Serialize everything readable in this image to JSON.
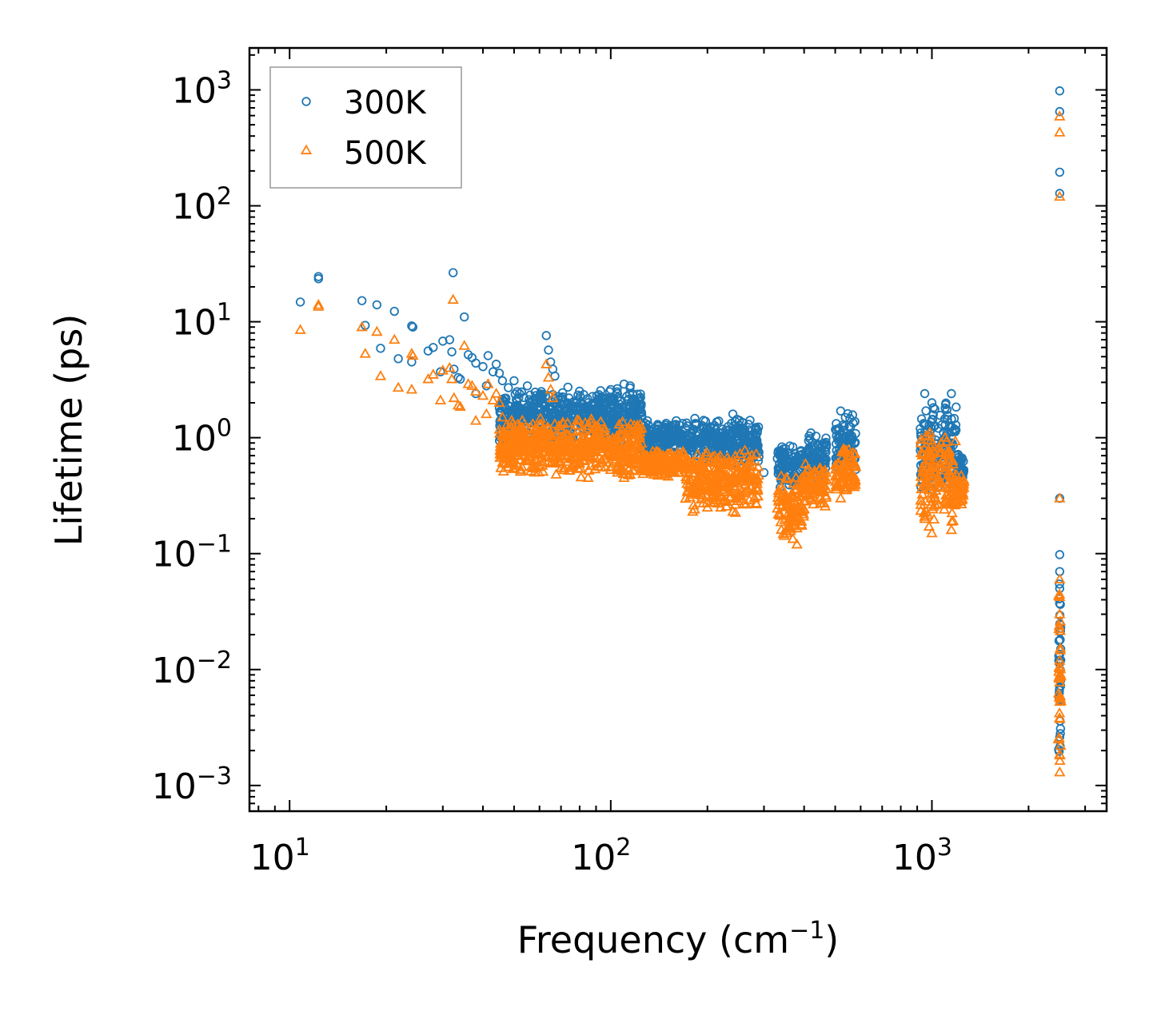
{
  "chart_data": {
    "type": "scatter",
    "title": "",
    "xlabel": "Frequency (cm",
    "xlabel_sup": "−1",
    "xlabel_end": ")",
    "ylabel": "Lifetime (ps)",
    "xscale": "log",
    "yscale": "log",
    "xlim": [
      7.5,
      3500
    ],
    "ylim": [
      0.0006,
      2300
    ],
    "x_ticks": [
      {
        "base": "10",
        "exp": "1",
        "value": 10
      },
      {
        "base": "10",
        "exp": "2",
        "value": 100
      },
      {
        "base": "10",
        "exp": "3",
        "value": 1000
      }
    ],
    "y_ticks": [
      {
        "base": "10",
        "exp": "3",
        "value": 1000
      },
      {
        "base": "10",
        "exp": "2",
        "value": 100
      },
      {
        "base": "10",
        "exp": "1",
        "value": 10
      },
      {
        "base": "10",
        "exp": "0",
        "value": 1
      },
      {
        "base": "10",
        "exp": "−1",
        "value": 0.1
      },
      {
        "base": "10",
        "exp": "−2",
        "value": 0.01
      },
      {
        "base": "10",
        "exp": "−3",
        "value": 0.001
      }
    ],
    "legend_position": "top-left",
    "series": [
      {
        "name": "300K",
        "marker": "circle",
        "color": "#1f77b4",
        "points": [
          [
            10.8,
            14.8
          ],
          [
            12.3,
            23.5
          ],
          [
            12.3,
            24.5
          ],
          [
            16.8,
            15.2
          ],
          [
            17.2,
            9.3
          ],
          [
            18.7,
            14
          ],
          [
            19.2,
            5.9
          ],
          [
            21.2,
            12.3
          ],
          [
            21.8,
            4.8
          ],
          [
            24,
            9.2
          ],
          [
            24.2,
            9
          ],
          [
            24,
            4.5
          ],
          [
            27,
            5.6
          ],
          [
            28,
            6
          ],
          [
            29.5,
            3.7
          ],
          [
            30,
            6.8
          ],
          [
            31.5,
            7
          ],
          [
            32,
            5.5
          ],
          [
            32.3,
            26.5
          ],
          [
            32.5,
            3.9
          ],
          [
            33.5,
            3.3
          ],
          [
            34,
            3.2
          ],
          [
            35,
            11
          ],
          [
            36,
            5.2
          ],
          [
            37,
            4.9
          ],
          [
            38,
            4.4
          ],
          [
            38,
            2.4
          ],
          [
            40,
            4.1
          ],
          [
            41,
            2.8
          ],
          [
            41.5,
            5.1
          ],
          [
            43,
            3.7
          ],
          [
            44,
            4.3
          ],
          [
            45,
            3.6
          ],
          [
            45,
            1.8
          ],
          [
            46,
            3.1
          ],
          [
            48,
            2.7
          ],
          [
            50,
            3.1
          ],
          [
            52,
            2.4
          ],
          [
            55,
            2.8
          ],
          [
            57,
            2.1
          ],
          [
            60,
            2.3
          ],
          [
            62,
            1.9
          ],
          [
            63,
            7.6
          ],
          [
            64,
            5.7
          ],
          [
            65,
            4.5
          ],
          [
            66,
            3.9
          ],
          [
            67,
            3.4
          ],
          [
            70,
            2.2
          ],
          [
            75,
            1.9
          ],
          [
            80,
            1.7
          ],
          [
            85,
            2.0
          ],
          [
            90,
            1.6
          ],
          [
            95,
            2.2
          ],
          [
            100,
            2.6
          ],
          [
            105,
            2.4
          ],
          [
            110,
            2.9
          ],
          [
            115,
            2.8
          ],
          [
            120,
            1.9
          ],
          [
            125,
            1.5
          ],
          [
            130,
            1.4
          ],
          [
            140,
            1.3
          ],
          [
            150,
            1.1
          ],
          [
            160,
            1.4
          ],
          [
            180,
            1.0
          ],
          [
            200,
            1.2
          ],
          [
            220,
            1.1
          ],
          [
            240,
            1.6
          ],
          [
            260,
            1.0
          ],
          [
            280,
            0.9
          ],
          [
            300,
            0.5
          ],
          [
            350,
            0.8
          ],
          [
            380,
            0.6
          ],
          [
            420,
            1.1
          ],
          [
            460,
            0.9
          ],
          [
            520,
            1.7
          ],
          [
            560,
            1.0
          ],
          [
            950,
            2.4
          ],
          [
            1000,
            2.0
          ],
          [
            1100,
            1.8
          ],
          [
            1150,
            2.4
          ],
          [
            1200,
            0.7
          ],
          [
            2500,
            980
          ],
          [
            2500,
            650
          ],
          [
            2500,
            195
          ],
          [
            2500,
            128
          ],
          [
            2500,
            0.3
          ],
          [
            2500,
            0.098
          ],
          [
            2500,
            0.07
          ],
          [
            2500,
            0.05
          ]
        ],
        "bands": [
          {
            "x_range": [
              45,
              125
            ],
            "y_range": [
              0.9,
              2.8
            ]
          },
          {
            "x_range": [
              125,
              170
            ],
            "y_range": [
              0.7,
              1.4
            ]
          },
          {
            "x_range": [
              170,
              290
            ],
            "y_range": [
              0.55,
              1.5
            ]
          },
          {
            "x_range": [
              330,
              400
            ],
            "y_range": [
              0.35,
              0.9
            ]
          },
          {
            "x_range": [
              400,
              470
            ],
            "y_range": [
              0.4,
              1.1
            ]
          },
          {
            "x_range": [
              500,
              580
            ],
            "y_range": [
              0.5,
              1.7
            ]
          },
          {
            "x_range": [
              920,
              1190
            ],
            "y_range": [
              0.3,
              2.4
            ]
          },
          {
            "x_range": [
              1190,
              1260
            ],
            "y_range": [
              0.4,
              0.75
            ]
          },
          {
            "x_range": [
              2480,
              2520
            ],
            "y_range": [
              0.0013,
              0.1
            ]
          }
        ]
      },
      {
        "name": "500K",
        "marker": "triangle",
        "color": "#ff7f0e",
        "points": [
          [
            10.8,
            8.5
          ],
          [
            12.3,
            13.5
          ],
          [
            12.3,
            14
          ],
          [
            16.8,
            9
          ],
          [
            17.2,
            5.3
          ],
          [
            18.7,
            8.2
          ],
          [
            19.2,
            3.4
          ],
          [
            21.2,
            7
          ],
          [
            21.8,
            2.7
          ],
          [
            24,
            5.3
          ],
          [
            24.2,
            5.1
          ],
          [
            24,
            2.6
          ],
          [
            27,
            3.2
          ],
          [
            28,
            3.5
          ],
          [
            29.5,
            2.1
          ],
          [
            30,
            3.8
          ],
          [
            31.5,
            4.0
          ],
          [
            32,
            3.2
          ],
          [
            32.3,
            15.5
          ],
          [
            32.5,
            2.2
          ],
          [
            33.5,
            1.9
          ],
          [
            34,
            1.85
          ],
          [
            35,
            6.2
          ],
          [
            36,
            2.9
          ],
          [
            37,
            2.8
          ],
          [
            38,
            2.5
          ],
          [
            38,
            1.4
          ],
          [
            40,
            2.3
          ],
          [
            41,
            1.6
          ],
          [
            41.5,
            2.9
          ],
          [
            43,
            2.1
          ],
          [
            44,
            2.4
          ],
          [
            45,
            2.0
          ],
          [
            46,
            1.5
          ],
          [
            48,
            1.2
          ],
          [
            50,
            0.65
          ],
          [
            52,
            1.1
          ],
          [
            55,
            0.75
          ],
          [
            58,
            0.9
          ],
          [
            60,
            1.3
          ],
          [
            63,
            4.3
          ],
          [
            64,
            3.3
          ],
          [
            65,
            2.6
          ],
          [
            66,
            2.2
          ],
          [
            70,
            0.7
          ],
          [
            75,
            0.55
          ],
          [
            80,
            0.6
          ],
          [
            85,
            0.45
          ],
          [
            90,
            0.6
          ],
          [
            95,
            0.85
          ],
          [
            100,
            0.7
          ],
          [
            105,
            0.5
          ],
          [
            110,
            0.45
          ],
          [
            115,
            0.48
          ],
          [
            120,
            0.6
          ],
          [
            130,
            0.6
          ],
          [
            140,
            0.55
          ],
          [
            160,
            0.6
          ],
          [
            180,
            0.23
          ],
          [
            200,
            0.25
          ],
          [
            220,
            0.25
          ],
          [
            240,
            0.23
          ],
          [
            260,
            0.27
          ],
          [
            280,
            0.3
          ],
          [
            350,
            0.3
          ],
          [
            380,
            0.12
          ],
          [
            420,
            0.3
          ],
          [
            460,
            0.35
          ],
          [
            520,
            0.3
          ],
          [
            560,
            0.7
          ],
          [
            950,
            0.5
          ],
          [
            1000,
            0.15
          ],
          [
            1100,
            1.0
          ],
          [
            1150,
            0.16
          ],
          [
            1200,
            0.4
          ],
          [
            2500,
            590
          ],
          [
            2500,
            430
          ],
          [
            2500,
            120
          ],
          [
            2500,
            0.3
          ],
          [
            2500,
            0.06
          ],
          [
            2500,
            0.03
          ],
          [
            2500,
            0.0013
          ]
        ],
        "bands": [
          {
            "x_range": [
              45,
              125
            ],
            "y_range": [
              0.45,
              1.5
            ]
          },
          {
            "x_range": [
              125,
              170
            ],
            "y_range": [
              0.45,
              0.8
            ]
          },
          {
            "x_range": [
              170,
              290
            ],
            "y_range": [
              0.22,
              0.8
            ]
          },
          {
            "x_range": [
              330,
              400
            ],
            "y_range": [
              0.13,
              0.5
            ]
          },
          {
            "x_range": [
              400,
              470
            ],
            "y_range": [
              0.25,
              0.6
            ]
          },
          {
            "x_range": [
              500,
              580
            ],
            "y_range": [
              0.3,
              0.9
            ]
          },
          {
            "x_range": [
              920,
              1190
            ],
            "y_range": [
              0.15,
              1.2
            ]
          },
          {
            "x_range": [
              1190,
              1260
            ],
            "y_range": [
              0.25,
              0.5
            ]
          },
          {
            "x_range": [
              2480,
              2520
            ],
            "y_range": [
              0.0013,
              0.06
            ]
          }
        ]
      }
    ]
  }
}
